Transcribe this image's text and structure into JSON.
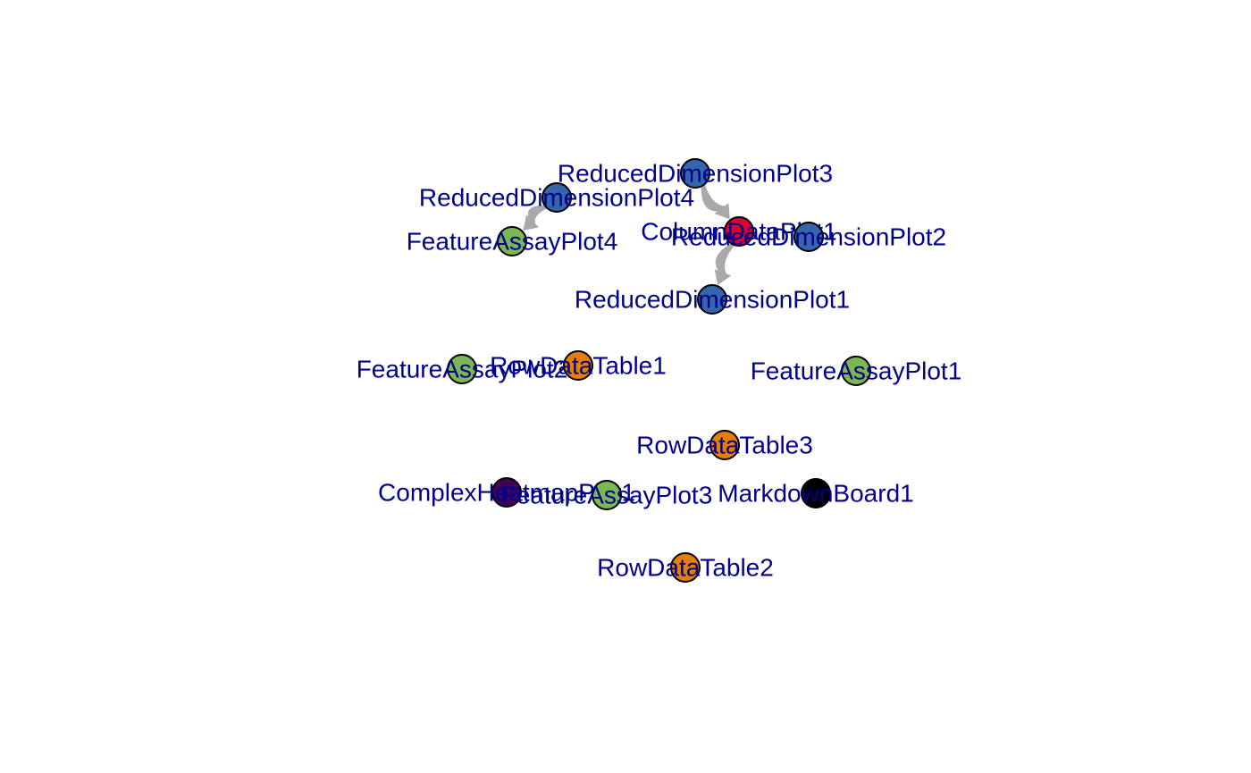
{
  "graph": {
    "label_color": "#00008B",
    "edge_color": "#A9A9A9",
    "node_types": {
      "ReducedDimensionPlot": {
        "color": "#3565AA"
      },
      "ColumnDataPlot": {
        "color": "#DB0230"
      },
      "FeatureAssayPlot": {
        "color": "#7BB854"
      },
      "RowDataTable": {
        "color": "#E47E04"
      },
      "ComplexHeatmapPlot": {
        "color": "#440154"
      },
      "MarkdownBoard": {
        "color": "#000000"
      }
    },
    "nodes": [
      {
        "id": "ReducedDimensionPlot3",
        "label": "ReducedDimensionPlot3",
        "type": "ReducedDimensionPlot"
      },
      {
        "id": "ReducedDimensionPlot4",
        "label": "ReducedDimensionPlot4",
        "type": "ReducedDimensionPlot"
      },
      {
        "id": "ColumnDataPlot1",
        "label": "ColumnDataPlot1",
        "type": "ColumnDataPlot"
      },
      {
        "id": "ReducedDimensionPlot2",
        "label": "ReducedDimensionPlot2",
        "type": "ReducedDimensionPlot"
      },
      {
        "id": "FeatureAssayPlot4",
        "label": "FeatureAssayPlot4",
        "type": "FeatureAssayPlot"
      },
      {
        "id": "ReducedDimensionPlot1",
        "label": "ReducedDimensionPlot1",
        "type": "ReducedDimensionPlot"
      },
      {
        "id": "FeatureAssayPlot2",
        "label": "FeatureAssayPlot2",
        "type": "FeatureAssayPlot"
      },
      {
        "id": "RowDataTable1",
        "label": "RowDataTable1",
        "type": "RowDataTable"
      },
      {
        "id": "FeatureAssayPlot1",
        "label": "FeatureAssayPlot1",
        "type": "FeatureAssayPlot"
      },
      {
        "id": "RowDataTable3",
        "label": "RowDataTable3",
        "type": "RowDataTable"
      },
      {
        "id": "ComplexHeatmapPlot1",
        "label": "ComplexHeatmapPlot1",
        "type": "ComplexHeatmapPlot"
      },
      {
        "id": "FeatureAssayPlot3",
        "label": "FeatureAssayPlot3",
        "type": "FeatureAssayPlot"
      },
      {
        "id": "MarkdownBoard1",
        "label": "MarkdownBoard1",
        "type": "MarkdownBoard"
      },
      {
        "id": "RowDataTable2",
        "label": "RowDataTable2",
        "type": "RowDataTable"
      }
    ],
    "edges": [
      {
        "from": "ReducedDimensionPlot4",
        "to": "FeatureAssayPlot4"
      },
      {
        "from": "ReducedDimensionPlot3",
        "to": "ColumnDataPlot1"
      },
      {
        "from": "ColumnDataPlot1",
        "to": "ReducedDimensionPlot1"
      }
    ]
  }
}
